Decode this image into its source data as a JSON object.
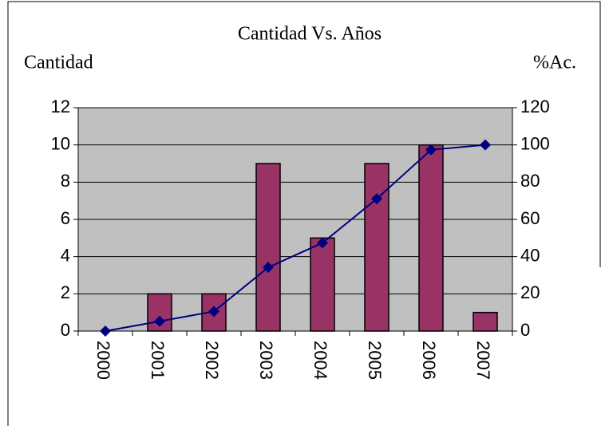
{
  "chart_data": {
    "type": "bar_line",
    "title": "Cantidad Vs. Años",
    "y_label": "Cantidad",
    "y2_label": "%Ac.",
    "categories": [
      "2000",
      "2001",
      "2002",
      "2003",
      "2004",
      "2005",
      "2006",
      "2007"
    ],
    "series": [
      {
        "name": "Cantidad",
        "type": "bar",
        "color": "#993366",
        "values": [
          0,
          2,
          2,
          9,
          5,
          9,
          10,
          1
        ]
      },
      {
        "name": "%Ac.",
        "type": "line",
        "axis": "y2",
        "color": "#000080",
        "values": [
          0,
          5.26,
          10.53,
          34.21,
          47.37,
          71.05,
          97.37,
          100
        ]
      }
    ],
    "ylim": [
      0,
      12
    ],
    "yticks": [
      0,
      2,
      4,
      6,
      8,
      10,
      12
    ],
    "y2lim": [
      0,
      120
    ],
    "y2ticks": [
      0,
      20,
      40,
      60,
      80,
      100,
      120
    ],
    "grid": true,
    "plot_background": "#c0c0c0"
  }
}
